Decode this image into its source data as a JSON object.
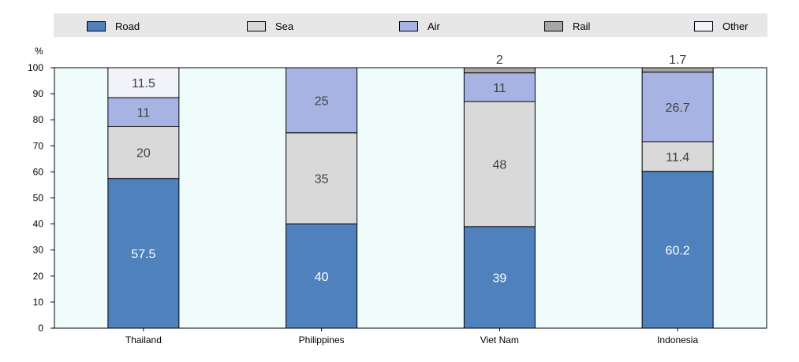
{
  "chart_data": {
    "type": "bar",
    "stacked": true,
    "unit": "%",
    "categories": [
      "Thailand",
      "Philippines",
      "Viet Nam",
      "Indonesia"
    ],
    "series": [
      {
        "name": "Road",
        "color": "#4f81bd",
        "values": [
          57.5,
          40,
          39,
          60.2
        ],
        "labels": [
          "57.5",
          "40",
          "39",
          "60.2"
        ],
        "label_color": "#ffffff"
      },
      {
        "name": "Sea",
        "color": "#d9d9d9",
        "values": [
          20,
          35,
          48,
          11.4
        ],
        "labels": [
          "20",
          "35",
          "48",
          "11.4"
        ],
        "label_color": "#404040"
      },
      {
        "name": "Air",
        "color": "#a7b4e3",
        "values": [
          11,
          25,
          11,
          26.7
        ],
        "labels": [
          "11",
          "25",
          "11",
          "26.7"
        ],
        "label_color": "#404040"
      },
      {
        "name": "Rail",
        "color": "#a6a6a6",
        "values": [
          0,
          0,
          2,
          1.7
        ],
        "labels": [
          "",
          "",
          "2",
          "1.7"
        ],
        "label_color": "#404040"
      },
      {
        "name": "Other",
        "color": "#f2f2f9",
        "values": [
          11.5,
          0,
          0,
          0
        ],
        "labels": [
          "11.5",
          "",
          "",
          ""
        ],
        "label_color": "#404040"
      }
    ],
    "ylim": [
      0,
      100
    ],
    "yticks": [
      0,
      10,
      20,
      30,
      40,
      50,
      60,
      70,
      80,
      90,
      100
    ],
    "grid": false,
    "legend_placement": "top",
    "plot_background": "#f0fcfc"
  }
}
